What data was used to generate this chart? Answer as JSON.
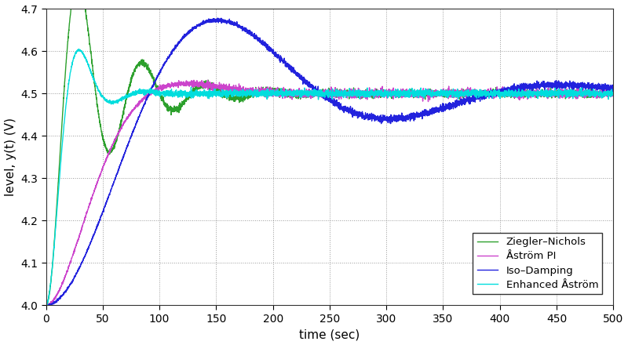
{
  "xlabel": "time (sec)",
  "ylabel": "level, y(t) (V)",
  "xlim": [
    0,
    500
  ],
  "ylim": [
    4.0,
    4.7
  ],
  "setpoint": 4.5,
  "start_val": 4.0,
  "yticks": [
    4.0,
    4.1,
    4.2,
    4.3,
    4.4,
    4.5,
    4.6,
    4.7
  ],
  "xticks": [
    0,
    50,
    100,
    150,
    200,
    250,
    300,
    350,
    400,
    450,
    500
  ],
  "colors": {
    "zn": "#2ca02c",
    "astrom": "#cc44cc",
    "iso": "#2222dd",
    "enhanced": "#00dddd"
  },
  "legend_labels": [
    "Ziegler–Nichols",
    "Åström PI",
    "Iso–Damping",
    "Enhanced Åström"
  ],
  "background_color": "#ffffff",
  "grid_color": "#999999",
  "linewidth": 1.0
}
